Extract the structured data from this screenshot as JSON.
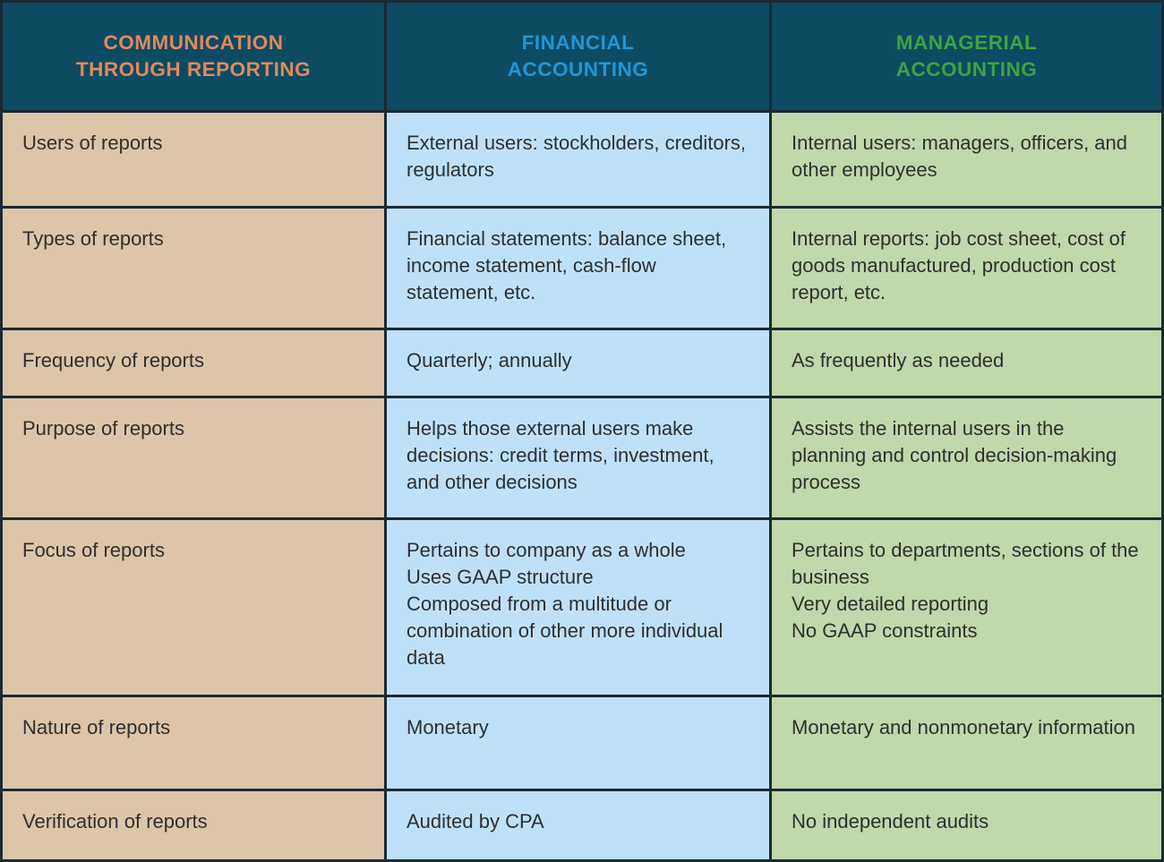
{
  "colors": {
    "header_bg": "#0d4b63",
    "communication_header_text": "#df8a5e",
    "financial_header_text": "#2196d6",
    "managerial_header_text": "#3fa33f",
    "label_column_bg": "#dcc5a9",
    "financial_column_bg": "#bfe1f8",
    "managerial_column_bg": "#c1d7ac",
    "grid_border": "#1b2a33",
    "body_text": "#2f2f2f"
  },
  "table": {
    "columns": [
      {
        "label": "COMMUNICATION\nTHROUGH REPORTING"
      },
      {
        "label": "FINANCIAL\nACCOUNTING"
      },
      {
        "label": "MANAGERIAL\nACCOUNTING"
      }
    ],
    "rows": [
      {
        "label": "Users of reports",
        "financial": "External users: stockholders, creditors, regulators",
        "managerial": "Internal users: managers, officers, and other employees"
      },
      {
        "label": "Types of reports",
        "financial": "Financial statements: balance sheet, income statement, cash-flow statement, etc.",
        "managerial": "Internal reports: job cost sheet, cost of goods manufactured, production cost report, etc."
      },
      {
        "label": "Frequency of reports",
        "financial": "Quarterly; annually",
        "managerial": "As frequently as needed"
      },
      {
        "label": "Purpose of reports",
        "financial": "Helps those external users make decisions: credit terms, investment, and other decisions",
        "managerial": "Assists the internal users in the planning and control decision-making process"
      },
      {
        "label": "Focus of reports",
        "financial": "Pertains to company as a whole\nUses GAAP structure\nComposed from a multitude or combination of other more individual data",
        "managerial": "Pertains to departments, sections of the business\nVery detailed reporting\nNo GAAP constraints"
      },
      {
        "label": "Nature of reports",
        "financial": "Monetary",
        "managerial": "Monetary and nonmonetary information"
      },
      {
        "label": "Verification of reports",
        "financial": "Audited by CPA",
        "managerial": "No independent audits"
      }
    ]
  }
}
